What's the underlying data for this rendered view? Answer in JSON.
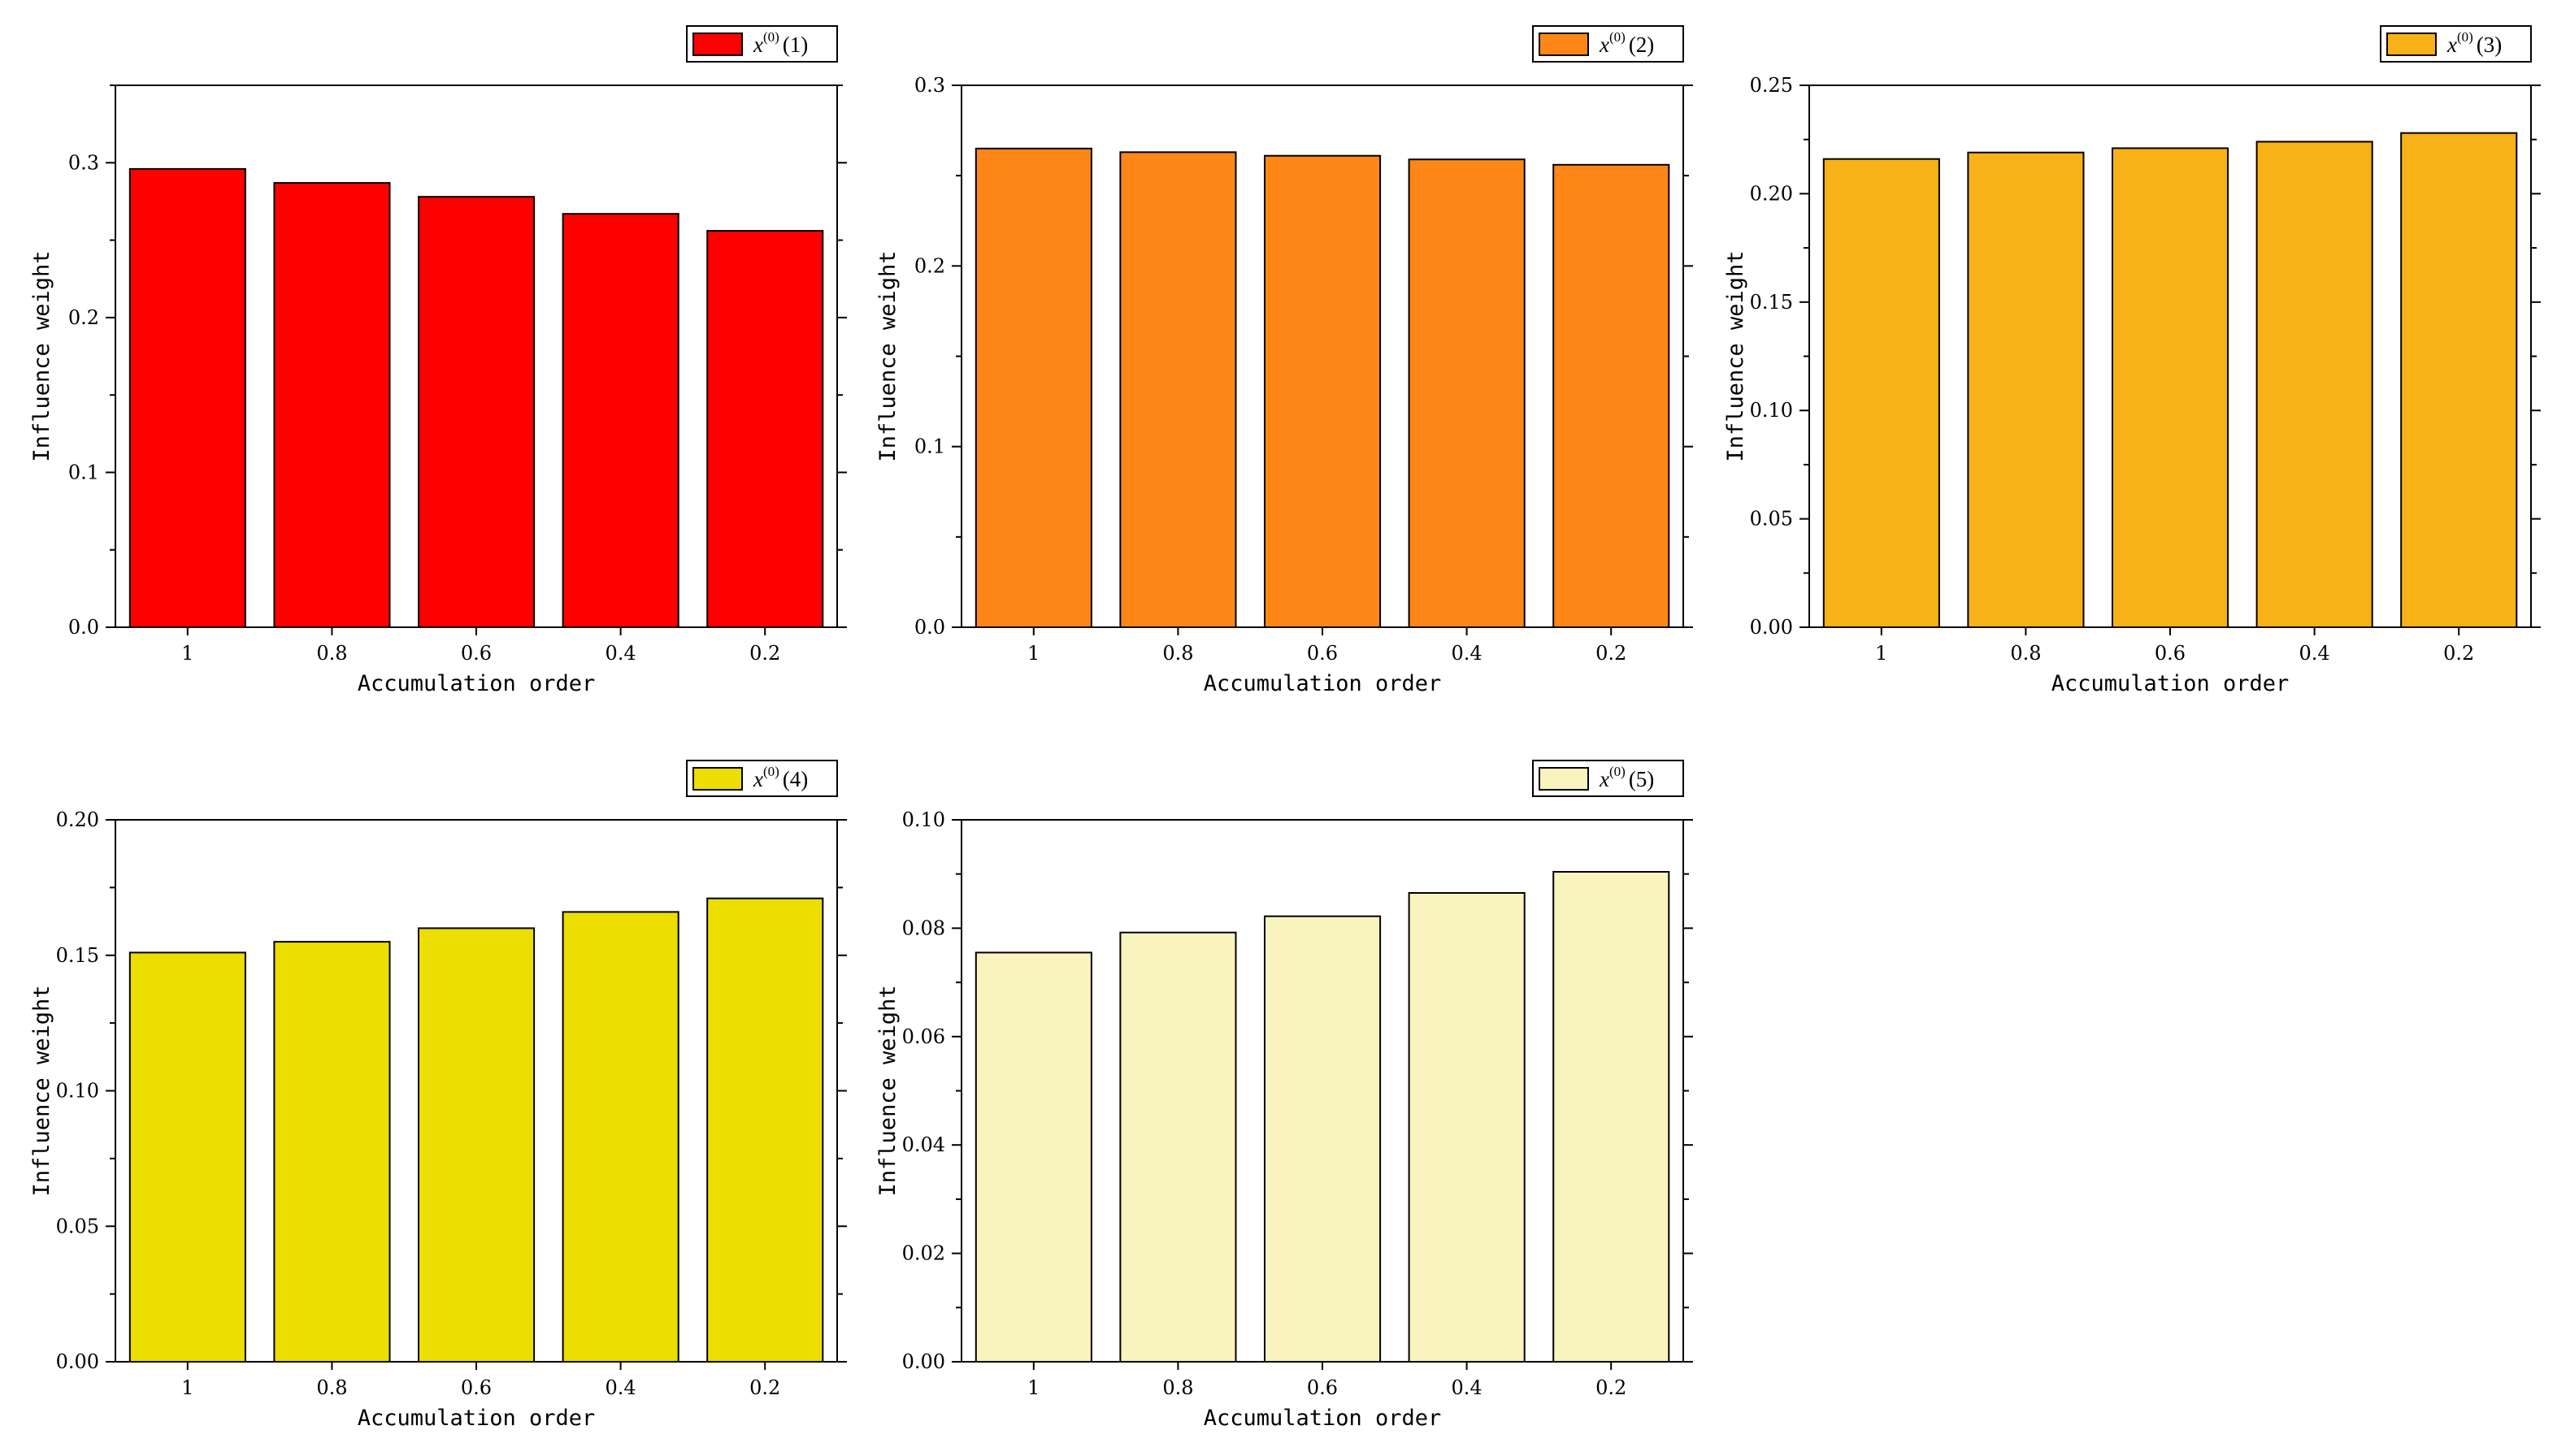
{
  "chart_data": [
    {
      "type": "bar",
      "categories": [
        "1",
        "0.8",
        "0.6",
        "0.4",
        "0.2"
      ],
      "values": [
        0.296,
        0.287,
        0.278,
        0.267,
        0.256
      ],
      "xlabel": "Accumulation order",
      "ylabel": "Influence weight",
      "ylim": [
        0,
        0.35
      ],
      "yticks": [
        0.0,
        0.1,
        0.2,
        0.3
      ],
      "ytick_labels": [
        "0.0",
        "0.1",
        "0.2",
        "0.3"
      ],
      "color": "#ff0000",
      "legend": {
        "var": "x",
        "sup": "(0)",
        "suffix": "(1)"
      }
    },
    {
      "type": "bar",
      "categories": [
        "1",
        "0.8",
        "0.6",
        "0.4",
        "0.2"
      ],
      "values": [
        0.265,
        0.263,
        0.261,
        0.259,
        0.256
      ],
      "xlabel": "Accumulation order",
      "ylabel": "Influence weight",
      "ylim": [
        0,
        0.3
      ],
      "yticks": [
        0.0,
        0.1,
        0.2,
        0.3
      ],
      "ytick_labels": [
        "0.0",
        "0.1",
        "0.2",
        "0.3"
      ],
      "color": "#ff8717",
      "legend": {
        "var": "x",
        "sup": "(0)",
        "suffix": "(2)"
      }
    },
    {
      "type": "bar",
      "categories": [
        "1",
        "0.8",
        "0.6",
        "0.4",
        "0.2"
      ],
      "values": [
        0.216,
        0.219,
        0.221,
        0.224,
        0.228
      ],
      "xlabel": "Accumulation order",
      "ylabel": "Influence weight",
      "ylim": [
        0,
        0.25
      ],
      "yticks": [
        0.0,
        0.05,
        0.1,
        0.15,
        0.2,
        0.25
      ],
      "ytick_labels": [
        "0.00",
        "0.05",
        "0.10",
        "0.15",
        "0.20",
        "0.25"
      ],
      "color": "#f8b116",
      "legend": {
        "var": "x",
        "sup": "(0)",
        "suffix": "(3)"
      }
    },
    {
      "type": "bar",
      "categories": [
        "1",
        "0.8",
        "0.6",
        "0.4",
        "0.2"
      ],
      "values": [
        0.151,
        0.155,
        0.16,
        0.166,
        0.171
      ],
      "xlabel": "Accumulation order",
      "ylabel": "Influence weight",
      "ylim": [
        0,
        0.2
      ],
      "yticks": [
        0.0,
        0.05,
        0.1,
        0.15,
        0.2
      ],
      "ytick_labels": [
        "0.00",
        "0.05",
        "0.10",
        "0.15",
        "0.20"
      ],
      "color": "#ebde00",
      "legend": {
        "var": "x",
        "sup": "(0)",
        "suffix": "(4)"
      }
    },
    {
      "type": "bar",
      "categories": [
        "1",
        "0.8",
        "0.6",
        "0.4",
        "0.2"
      ],
      "values": [
        0.0755,
        0.0792,
        0.0822,
        0.0865,
        0.0904
      ],
      "xlabel": "Accumulation order",
      "ylabel": "Influence weight",
      "ylim": [
        0,
        0.1
      ],
      "yticks": [
        0.0,
        0.02,
        0.04,
        0.06,
        0.08,
        0.1
      ],
      "ytick_labels": [
        "0.00",
        "0.02",
        "0.04",
        "0.06",
        "0.08",
        "0.10"
      ],
      "color": "#f9f4be",
      "legend": {
        "var": "x",
        "sup": "(0)",
        "suffix": "(5)"
      }
    }
  ]
}
